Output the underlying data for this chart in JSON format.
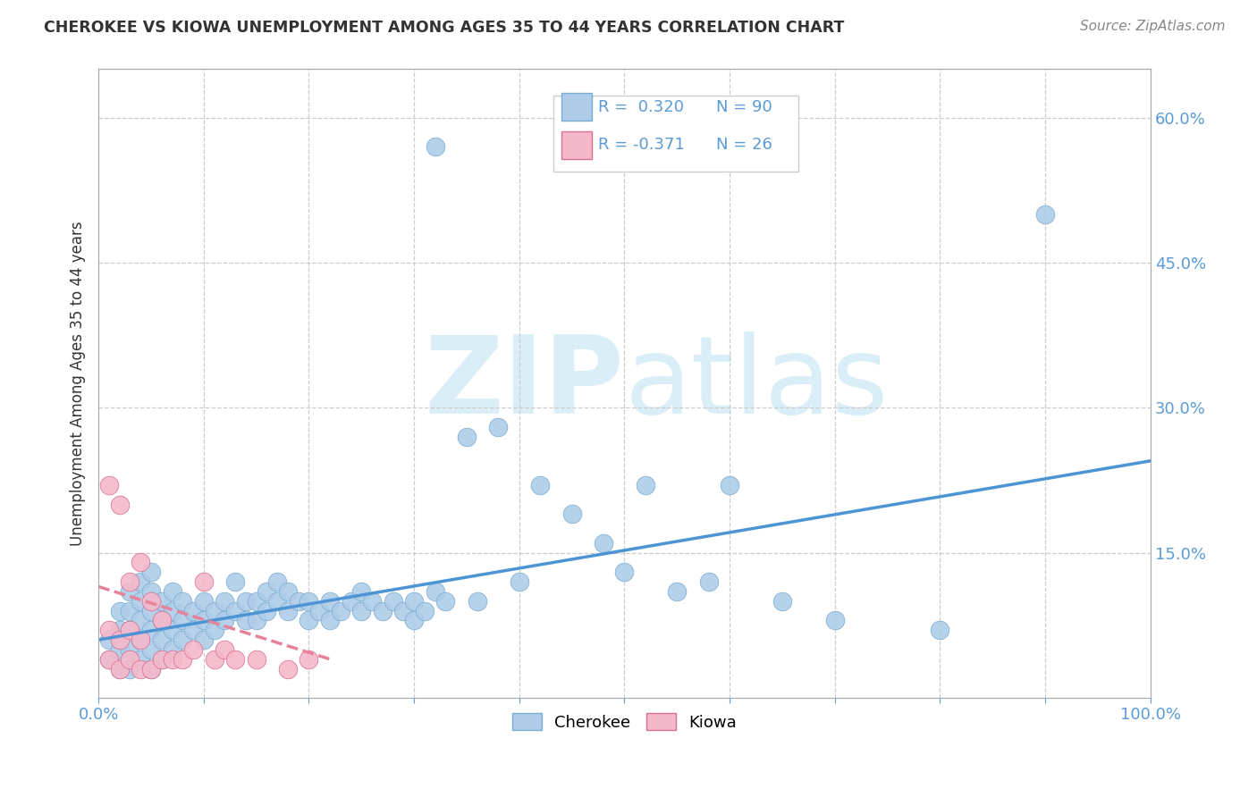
{
  "title": "CHEROKEE VS KIOWA UNEMPLOYMENT AMONG AGES 35 TO 44 YEARS CORRELATION CHART",
  "source": "Source: ZipAtlas.com",
  "ylabel": "Unemployment Among Ages 35 to 44 years",
  "xlim": [
    0.0,
    1.0
  ],
  "ylim": [
    0.0,
    0.65
  ],
  "cherokee_R": 0.32,
  "cherokee_N": 90,
  "kiowa_R": -0.371,
  "kiowa_N": 26,
  "cherokee_color": "#aecce8",
  "kiowa_color": "#f5b8cb",
  "cherokee_line_color": "#4d94d5",
  "kiowa_line_color": "#e8829a",
  "background_color": "#ffffff",
  "watermark_color": "#daeef8",
  "cherokee_line_x0": 0.0,
  "cherokee_line_x1": 1.0,
  "cherokee_line_y0": 0.06,
  "cherokee_line_y1": 0.245,
  "kiowa_line_x0": 0.0,
  "kiowa_line_x1": 0.22,
  "kiowa_line_y0": 0.115,
  "kiowa_line_y1": 0.04,
  "cherokee_x": [
    0.01,
    0.01,
    0.02,
    0.02,
    0.02,
    0.02,
    0.03,
    0.03,
    0.03,
    0.03,
    0.03,
    0.04,
    0.04,
    0.04,
    0.04,
    0.04,
    0.05,
    0.05,
    0.05,
    0.05,
    0.05,
    0.05,
    0.06,
    0.06,
    0.06,
    0.06,
    0.07,
    0.07,
    0.07,
    0.07,
    0.08,
    0.08,
    0.08,
    0.09,
    0.09,
    0.1,
    0.1,
    0.1,
    0.11,
    0.11,
    0.12,
    0.12,
    0.13,
    0.13,
    0.14,
    0.14,
    0.15,
    0.15,
    0.16,
    0.16,
    0.17,
    0.17,
    0.18,
    0.18,
    0.19,
    0.2,
    0.2,
    0.21,
    0.22,
    0.22,
    0.23,
    0.24,
    0.25,
    0.25,
    0.26,
    0.27,
    0.28,
    0.29,
    0.3,
    0.3,
    0.31,
    0.32,
    0.33,
    0.35,
    0.36,
    0.38,
    0.4,
    0.42,
    0.45,
    0.48,
    0.5,
    0.52,
    0.55,
    0.58,
    0.6,
    0.65,
    0.7,
    0.8,
    0.9,
    0.32
  ],
  "cherokee_y": [
    0.04,
    0.06,
    0.03,
    0.05,
    0.07,
    0.09,
    0.03,
    0.05,
    0.07,
    0.09,
    0.11,
    0.04,
    0.06,
    0.08,
    0.1,
    0.12,
    0.03,
    0.05,
    0.07,
    0.09,
    0.11,
    0.13,
    0.04,
    0.06,
    0.08,
    0.1,
    0.05,
    0.07,
    0.09,
    0.11,
    0.06,
    0.08,
    0.1,
    0.07,
    0.09,
    0.06,
    0.08,
    0.1,
    0.07,
    0.09,
    0.08,
    0.1,
    0.09,
    0.12,
    0.08,
    0.1,
    0.08,
    0.1,
    0.09,
    0.11,
    0.1,
    0.12,
    0.09,
    0.11,
    0.1,
    0.08,
    0.1,
    0.09,
    0.08,
    0.1,
    0.09,
    0.1,
    0.09,
    0.11,
    0.1,
    0.09,
    0.1,
    0.09,
    0.08,
    0.1,
    0.09,
    0.11,
    0.1,
    0.27,
    0.1,
    0.28,
    0.12,
    0.22,
    0.19,
    0.16,
    0.13,
    0.22,
    0.11,
    0.12,
    0.22,
    0.1,
    0.08,
    0.07,
    0.5,
    0.57
  ],
  "kiowa_x": [
    0.01,
    0.01,
    0.01,
    0.02,
    0.02,
    0.02,
    0.03,
    0.03,
    0.03,
    0.04,
    0.04,
    0.04,
    0.05,
    0.05,
    0.06,
    0.06,
    0.07,
    0.08,
    0.09,
    0.1,
    0.11,
    0.12,
    0.13,
    0.15,
    0.18,
    0.2
  ],
  "kiowa_y": [
    0.04,
    0.07,
    0.22,
    0.03,
    0.06,
    0.2,
    0.04,
    0.07,
    0.12,
    0.03,
    0.06,
    0.14,
    0.03,
    0.1,
    0.04,
    0.08,
    0.04,
    0.04,
    0.05,
    0.12,
    0.04,
    0.05,
    0.04,
    0.04,
    0.03,
    0.04
  ]
}
